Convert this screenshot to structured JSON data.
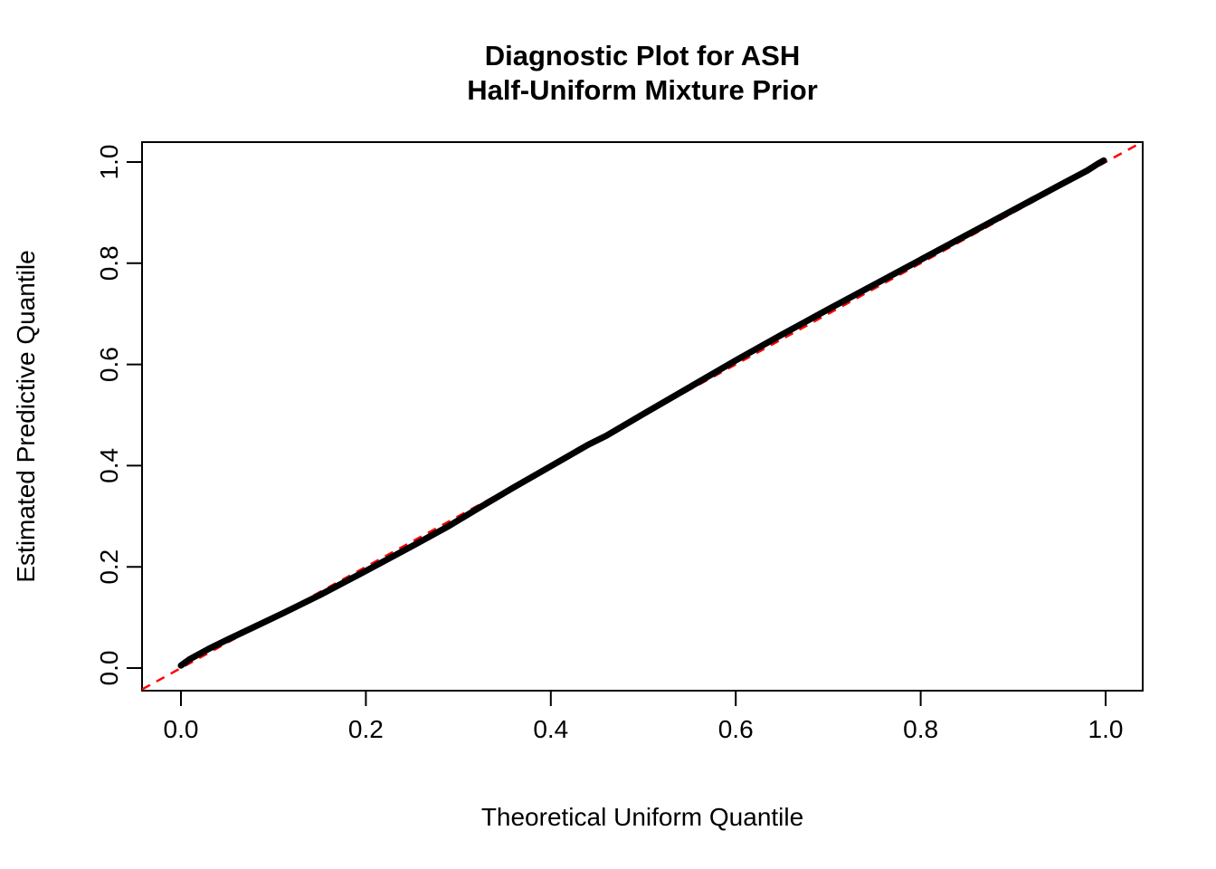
{
  "figure": {
    "background": "#ffffff",
    "title_line1": "Diagnostic Plot for ASH",
    "title_line2": "Half-Uniform Mixture Prior",
    "xlabel": "Theoretical Uniform Quantile",
    "ylabel": "Estimated Predictive Quantile"
  },
  "chart_data": {
    "type": "scatter",
    "title": "Diagnostic Plot for ASH Half-Uniform Mixture Prior",
    "xlabel": "Theoretical Uniform Quantile",
    "ylabel": "Estimated Predictive Quantile",
    "xlim": [
      -0.042,
      1.042
    ],
    "ylim": [
      -0.042,
      1.042
    ],
    "grid": false,
    "legend": "none",
    "xticks": {
      "values": [
        0.0,
        0.2,
        0.4,
        0.6,
        0.8,
        1.0
      ],
      "labels": [
        "0.0",
        "0.2",
        "0.4",
        "0.6",
        "0.8",
        "1.0"
      ]
    },
    "yticks": {
      "values": [
        0.0,
        0.2,
        0.4,
        0.6,
        0.8,
        1.0
      ],
      "labels": [
        "0.0",
        "0.2",
        "0.4",
        "0.6",
        "0.8",
        "1.0"
      ]
    },
    "series": [
      {
        "name": "estimated-vs-theoretical-quantiles",
        "color": "#000000",
        "style": "thick-point-band",
        "points": [
          [
            0.0,
            0.005
          ],
          [
            0.01,
            0.018
          ],
          [
            0.03,
            0.038
          ],
          [
            0.05,
            0.056
          ],
          [
            0.08,
            0.082
          ],
          [
            0.11,
            0.108
          ],
          [
            0.15,
            0.144
          ],
          [
            0.2,
            0.192
          ],
          [
            0.25,
            0.241
          ],
          [
            0.29,
            0.281
          ],
          [
            0.32,
            0.314
          ],
          [
            0.36,
            0.357
          ],
          [
            0.4,
            0.399
          ],
          [
            0.44,
            0.441
          ],
          [
            0.46,
            0.459
          ],
          [
            0.5,
            0.502
          ],
          [
            0.55,
            0.555
          ],
          [
            0.6,
            0.608
          ],
          [
            0.65,
            0.659
          ],
          [
            0.7,
            0.709
          ],
          [
            0.75,
            0.758
          ],
          [
            0.8,
            0.807
          ],
          [
            0.85,
            0.856
          ],
          [
            0.9,
            0.905
          ],
          [
            0.95,
            0.954
          ],
          [
            0.98,
            0.983
          ],
          [
            0.992,
            0.997
          ],
          [
            0.998,
            1.003
          ]
        ]
      }
    ],
    "reference_line": {
      "name": "identity-line y=x",
      "from": [
        -0.042,
        -0.042
      ],
      "to": [
        1.042,
        1.042
      ],
      "color": "#FF0000",
      "style": "dashed"
    }
  }
}
